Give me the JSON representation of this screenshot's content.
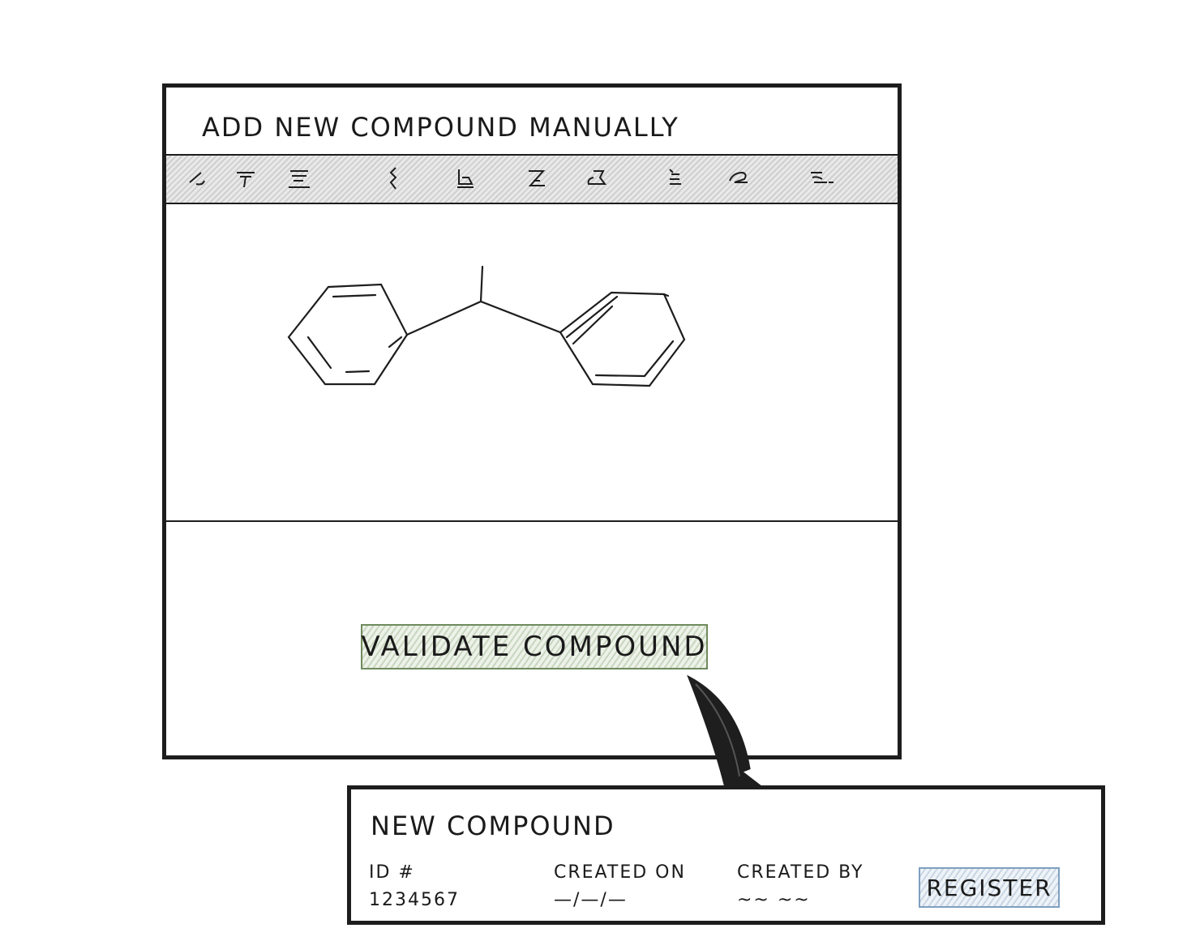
{
  "main_window": {
    "title": "ADD NEW COMPOUND MANUALLY",
    "toolbar": {
      "tools": [
        {
          "icon": "bond-single-icon"
        },
        {
          "icon": "bond-double-icon"
        },
        {
          "icon": "bond-triple-icon"
        },
        {
          "icon": "chain-icon"
        },
        {
          "icon": "ring-cyclohexane-icon"
        },
        {
          "icon": "ring-cyclopentane-icon"
        },
        {
          "icon": "ring-benzene-icon"
        },
        {
          "icon": "atom-element-icon"
        },
        {
          "icon": "template-icon"
        },
        {
          "icon": "more-tools-icon"
        }
      ]
    },
    "validate_button_label": "VALIDATE COMPOUND"
  },
  "result_panel": {
    "title": "NEW COMPOUND",
    "fields": {
      "id_label": "ID #",
      "id_value": "1234567",
      "created_on_label": "CREATED ON",
      "created_on_value": "—/—/—",
      "created_by_label": "CREATED BY",
      "created_by_value": "~~ ~~"
    },
    "register_button_label": "REGISTER"
  },
  "colors": {
    "ink": "#1d1d1d",
    "toolbar_hatch": "#cfcfcf",
    "validate_accent": "#6f8a5e",
    "register_accent": "#7f9fc0"
  }
}
